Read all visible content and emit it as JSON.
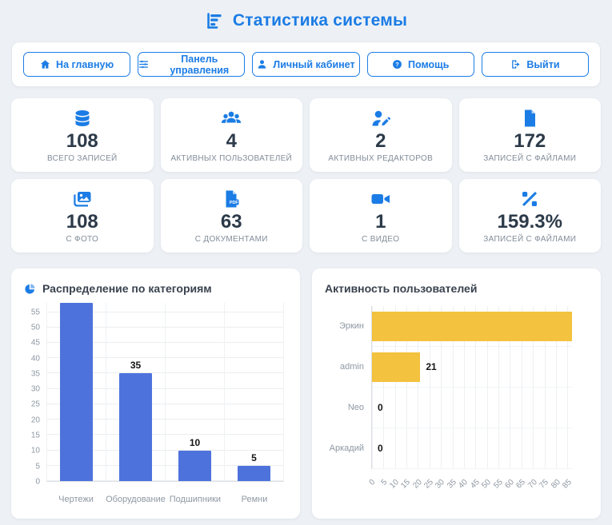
{
  "header": {
    "title": "Статистика системы",
    "icon": "bar-chart-icon"
  },
  "nav": {
    "items": [
      {
        "icon": "home-icon",
        "label": "На главную"
      },
      {
        "icon": "sliders-icon",
        "label": "Панель управления"
      },
      {
        "icon": "user-icon",
        "label": "Личный кабинет"
      },
      {
        "icon": "help-icon",
        "label": "Помощь"
      },
      {
        "icon": "logout-icon",
        "label": "Выйти"
      }
    ]
  },
  "stats": {
    "cards": [
      {
        "icon": "database-icon",
        "value": "108",
        "label": "ВСЕГО ЗАПИСЕЙ"
      },
      {
        "icon": "users-icon",
        "value": "4",
        "label": "АКТИВНЫХ ПОЛЬЗОВАТЕЛЕЙ"
      },
      {
        "icon": "user-edit-icon",
        "value": "2",
        "label": "АКТИВНЫХ РЕДАКТОРОВ"
      },
      {
        "icon": "file-icon",
        "value": "172",
        "label": "ЗАПИСЕЙ С ФАЙЛАМИ"
      },
      {
        "icon": "images-icon",
        "value": "108",
        "label": "С ФОТО"
      },
      {
        "icon": "pdf-icon",
        "value": "63",
        "label": "С ДОКУМЕНТАМИ"
      },
      {
        "icon": "video-icon",
        "value": "1",
        "label": "С ВИДЕО"
      },
      {
        "icon": "percent-icon",
        "value": "159.3%",
        "label": "ЗАПИСЕЙ С ФАЙЛАМИ"
      }
    ]
  },
  "colors": {
    "accent": "#1b7ce5",
    "bar_blue": "#4e72dc",
    "bar_yellow": "#f3c23e",
    "value_text": "#2c3a49",
    "muted_text": "#8e98a3",
    "page_background": "#edf1f5"
  },
  "chart_data": [
    {
      "type": "bar",
      "orientation": "vertical",
      "title": "Распределение по категориям",
      "categories": [
        "Чертежи",
        "Оборудование",
        "Подшипники",
        "Ремни"
      ],
      "values": [
        58,
        35,
        10,
        5
      ],
      "label_visible": [
        false,
        true,
        true,
        true
      ],
      "ylim": [
        0,
        58
      ],
      "axis_max": 58,
      "tick_max": 55,
      "tick_step": 5,
      "bar_color": "#4e72dc",
      "grid": true,
      "legend": false
    },
    {
      "type": "bar",
      "orientation": "horizontal",
      "title": "Активность пользователей",
      "categories": [
        "Эркин",
        "admin",
        "Neo",
        "Аркадий"
      ],
      "values": [
        87,
        21,
        0,
        0
      ],
      "label_visible": [
        false,
        true,
        true,
        true
      ],
      "xlim": [
        0,
        87
      ],
      "axis_max": 87,
      "tick_max": 85,
      "tick_step": 5,
      "bar_color": "#f3c23e",
      "grid": true,
      "legend": false
    }
  ]
}
